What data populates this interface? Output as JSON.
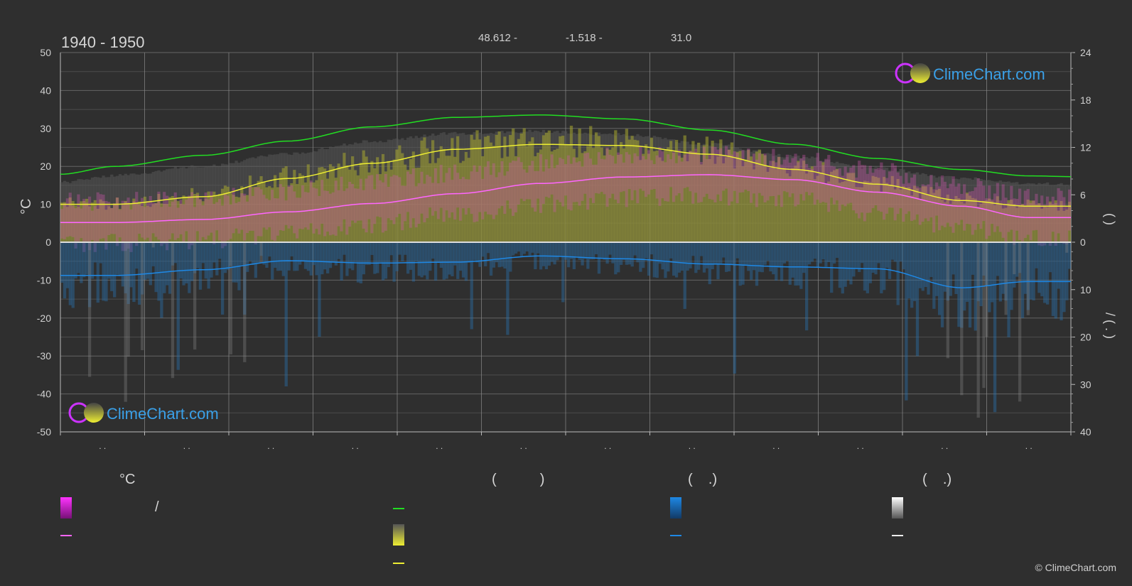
{
  "header": {
    "period": "1940 - 1950",
    "latitude": "48.612 -",
    "longitude": "-1.518 -",
    "elevation": "31.0"
  },
  "brand": {
    "logo_text": "ClimeChart.com",
    "copyright": "© ClimeChart.com"
  },
  "colors": {
    "background": "#2f2f2f",
    "grid": "#8a8a8a",
    "axis_text": "#d0d0d0",
    "daylight": "#22dd22",
    "sunshine_line": "#eeee33",
    "sunshine_fill": "#b8b831",
    "temp_mean": "#ff66ff",
    "temp_range": "#cc44aa",
    "precip": "#1e88e5",
    "precip_fill": "#2a6fa8",
    "snow": "#dddddd",
    "logo_blue": "#3aa0e8"
  },
  "legend": {
    "temp_header": "°C",
    "sun_header": "(           )",
    "rain_header": "(    .)",
    "snow_header": "(    .)",
    "temp_range_label": "/",
    "items": [
      "temp-range",
      "temp-mean",
      "daylight",
      "sunshine-hours",
      "sunshine-mean",
      "precipitation",
      "precipitation-mean",
      "snowfall",
      "snowfall-mean"
    ]
  },
  "chart_data": {
    "type": "line",
    "title": "1940 - 1950",
    "x_tick_labels": [
      ". .",
      ". .",
      ". .",
      ". .",
      ". .",
      ". .",
      ". .",
      ". .",
      ". .",
      ". .",
      ". .",
      ". ."
    ],
    "left_axis": {
      "label": "°C",
      "ylim": [
        -50,
        50
      ],
      "ticks": [
        50,
        40,
        30,
        20,
        10,
        0,
        -10,
        -20,
        -30,
        -40,
        -50
      ]
    },
    "right_axis_top": {
      "label": "(    )",
      "ylim": [
        0,
        24
      ],
      "ticks": [
        24,
        18,
        12,
        6,
        0
      ]
    },
    "right_axis_bottom": {
      "label": "/  (  .  )",
      "ylim": [
        0,
        40
      ],
      "ticks": [
        0,
        10,
        20,
        30,
        40
      ]
    },
    "series": [
      {
        "key": "daylight",
        "axis": "hours",
        "values": [
          8.6,
          9.6,
          11.0,
          12.8,
          14.6,
          15.8,
          16.1,
          15.6,
          14.2,
          12.4,
          10.6,
          9.2,
          8.4,
          8.3
        ]
      },
      {
        "key": "sunshine_mean",
        "axis": "celsius",
        "values": [
          10.0,
          10.0,
          12.0,
          16.8,
          20.8,
          24.5,
          25.8,
          25.5,
          23.2,
          19.2,
          15.3,
          11.0,
          9.5,
          9.5
        ]
      },
      {
        "key": "temp_mean",
        "axis": "celsius",
        "values": [
          5.2,
          5.2,
          6.0,
          8.0,
          10.2,
          12.8,
          15.5,
          17.2,
          17.8,
          16.5,
          13.2,
          9.5,
          6.5,
          6.5
        ]
      },
      {
        "key": "precip_mean",
        "axis": "precip_mm",
        "values": [
          7.0,
          7.0,
          5.8,
          3.9,
          4.4,
          4.2,
          2.9,
          3.5,
          4.6,
          5.2,
          5.6,
          9.6,
          8.3,
          8.3
        ]
      }
    ],
    "x_positions_months": [
      0,
      0.65,
      1.7,
      2.7,
      3.7,
      4.7,
      5.7,
      6.7,
      7.7,
      8.7,
      9.7,
      10.7,
      11.5,
      12
    ],
    "grid": true
  }
}
